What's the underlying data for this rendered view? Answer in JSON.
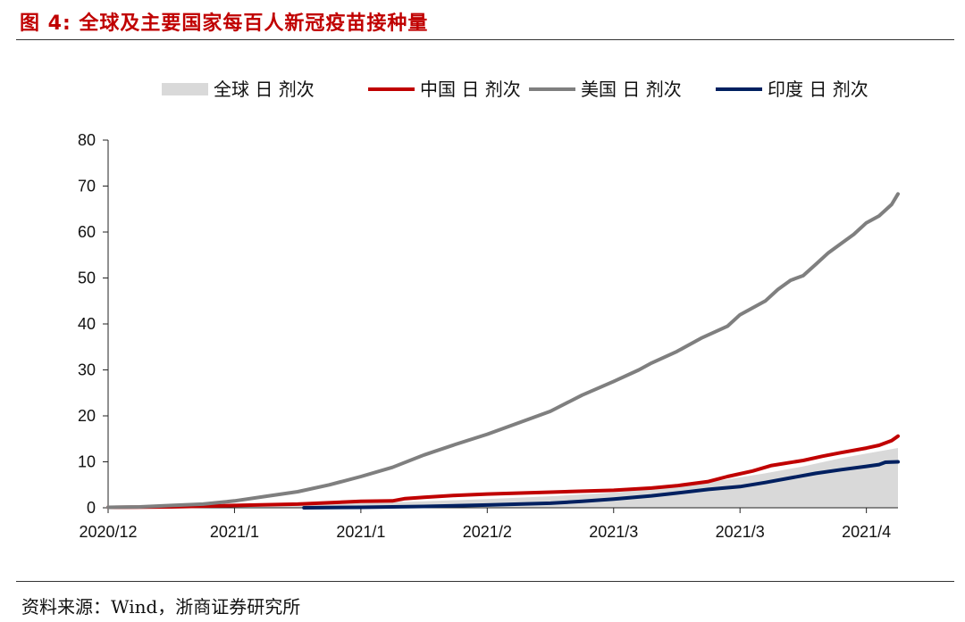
{
  "header": {
    "title": "图 4: 全球及主要国家每百人新冠疫苗接种量"
  },
  "footer": {
    "source": "资料来源：Wind，浙商证券研究所"
  },
  "chart_data": {
    "type": "line",
    "title": "",
    "xlabel": "",
    "ylabel": "",
    "ylim": [
      0,
      80
    ],
    "yticks": [
      0,
      10,
      20,
      30,
      40,
      50,
      60,
      70,
      80
    ],
    "xlim": [
      0,
      125
    ],
    "x_tick_labels": [
      {
        "x": 0,
        "label": "2020/12"
      },
      {
        "x": 20,
        "label": "2021/1"
      },
      {
        "x": 40,
        "label": "2021/1"
      },
      {
        "x": 60,
        "label": "2021/2"
      },
      {
        "x": 80,
        "label": "2021/3"
      },
      {
        "x": 100,
        "label": "2021/3"
      },
      {
        "x": 120,
        "label": "2021/4"
      }
    ],
    "legend_position": "top",
    "series": [
      {
        "name": "全球 日 剂次",
        "style": "area",
        "color": "#d9d9d9",
        "points": [
          [
            0,
            0.05
          ],
          [
            10,
            0.1
          ],
          [
            20,
            0.3
          ],
          [
            30,
            0.6
          ],
          [
            40,
            1.0
          ],
          [
            50,
            1.4
          ],
          [
            60,
            1.9
          ],
          [
            70,
            2.5
          ],
          [
            80,
            3.3
          ],
          [
            86,
            4.0
          ],
          [
            92,
            5.0
          ],
          [
            98,
            6.2
          ],
          [
            104,
            7.5
          ],
          [
            110,
            9.0
          ],
          [
            116,
            10.8
          ],
          [
            120,
            11.8
          ],
          [
            125,
            13.0
          ]
        ]
      },
      {
        "name": "中国 日 剂次",
        "style": "line",
        "color": "#c00000",
        "points": [
          [
            0,
            0.1
          ],
          [
            10,
            0.2
          ],
          [
            20,
            0.5
          ],
          [
            30,
            0.8
          ],
          [
            40,
            1.4
          ],
          [
            45,
            1.5
          ],
          [
            47,
            2.0
          ],
          [
            50,
            2.3
          ],
          [
            55,
            2.7
          ],
          [
            60,
            3.0
          ],
          [
            70,
            3.4
          ],
          [
            80,
            3.8
          ],
          [
            86,
            4.3
          ],
          [
            90,
            4.8
          ],
          [
            95,
            5.7
          ],
          [
            98,
            6.8
          ],
          [
            102,
            8.0
          ],
          [
            105,
            9.2
          ],
          [
            110,
            10.3
          ],
          [
            113,
            11.2
          ],
          [
            116,
            12.0
          ],
          [
            120,
            13.0
          ],
          [
            122,
            13.6
          ],
          [
            124,
            14.6
          ],
          [
            125,
            15.6
          ]
        ]
      },
      {
        "name": "美国 日 剂次",
        "style": "line",
        "color": "#7f7f7f",
        "points": [
          [
            0,
            0.1
          ],
          [
            5,
            0.2
          ],
          [
            10,
            0.5
          ],
          [
            15,
            0.8
          ],
          [
            18,
            1.2
          ],
          [
            20,
            1.5
          ],
          [
            25,
            2.5
          ],
          [
            30,
            3.5
          ],
          [
            35,
            5.0
          ],
          [
            40,
            6.8
          ],
          [
            45,
            8.8
          ],
          [
            50,
            11.5
          ],
          [
            55,
            13.8
          ],
          [
            60,
            16.0
          ],
          [
            65,
            18.5
          ],
          [
            70,
            21.0
          ],
          [
            75,
            24.5
          ],
          [
            80,
            27.5
          ],
          [
            84,
            30.0
          ],
          [
            86,
            31.5
          ],
          [
            90,
            34.0
          ],
          [
            94,
            37.0
          ],
          [
            98,
            39.5
          ],
          [
            100,
            42.0
          ],
          [
            104,
            45.0
          ],
          [
            106,
            47.5
          ],
          [
            108,
            49.5
          ],
          [
            110,
            50.5
          ],
          [
            112,
            53.0
          ],
          [
            114,
            55.5
          ],
          [
            116,
            57.5
          ],
          [
            118,
            59.5
          ],
          [
            120,
            62.0
          ],
          [
            122,
            63.5
          ],
          [
            124,
            66.0
          ],
          [
            125,
            68.3
          ]
        ]
      },
      {
        "name": "印度 日 剂次",
        "style": "line",
        "color": "#002060",
        "points": [
          [
            31,
            0
          ],
          [
            40,
            0.1
          ],
          [
            50,
            0.3
          ],
          [
            60,
            0.6
          ],
          [
            70,
            1.0
          ],
          [
            75,
            1.4
          ],
          [
            80,
            1.9
          ],
          [
            86,
            2.6
          ],
          [
            90,
            3.2
          ],
          [
            95,
            4.0
          ],
          [
            100,
            4.6
          ],
          [
            104,
            5.5
          ],
          [
            108,
            6.5
          ],
          [
            112,
            7.5
          ],
          [
            116,
            8.3
          ],
          [
            120,
            9.0
          ],
          [
            122,
            9.4
          ],
          [
            123,
            9.9
          ],
          [
            125,
            10.0
          ]
        ]
      }
    ]
  }
}
